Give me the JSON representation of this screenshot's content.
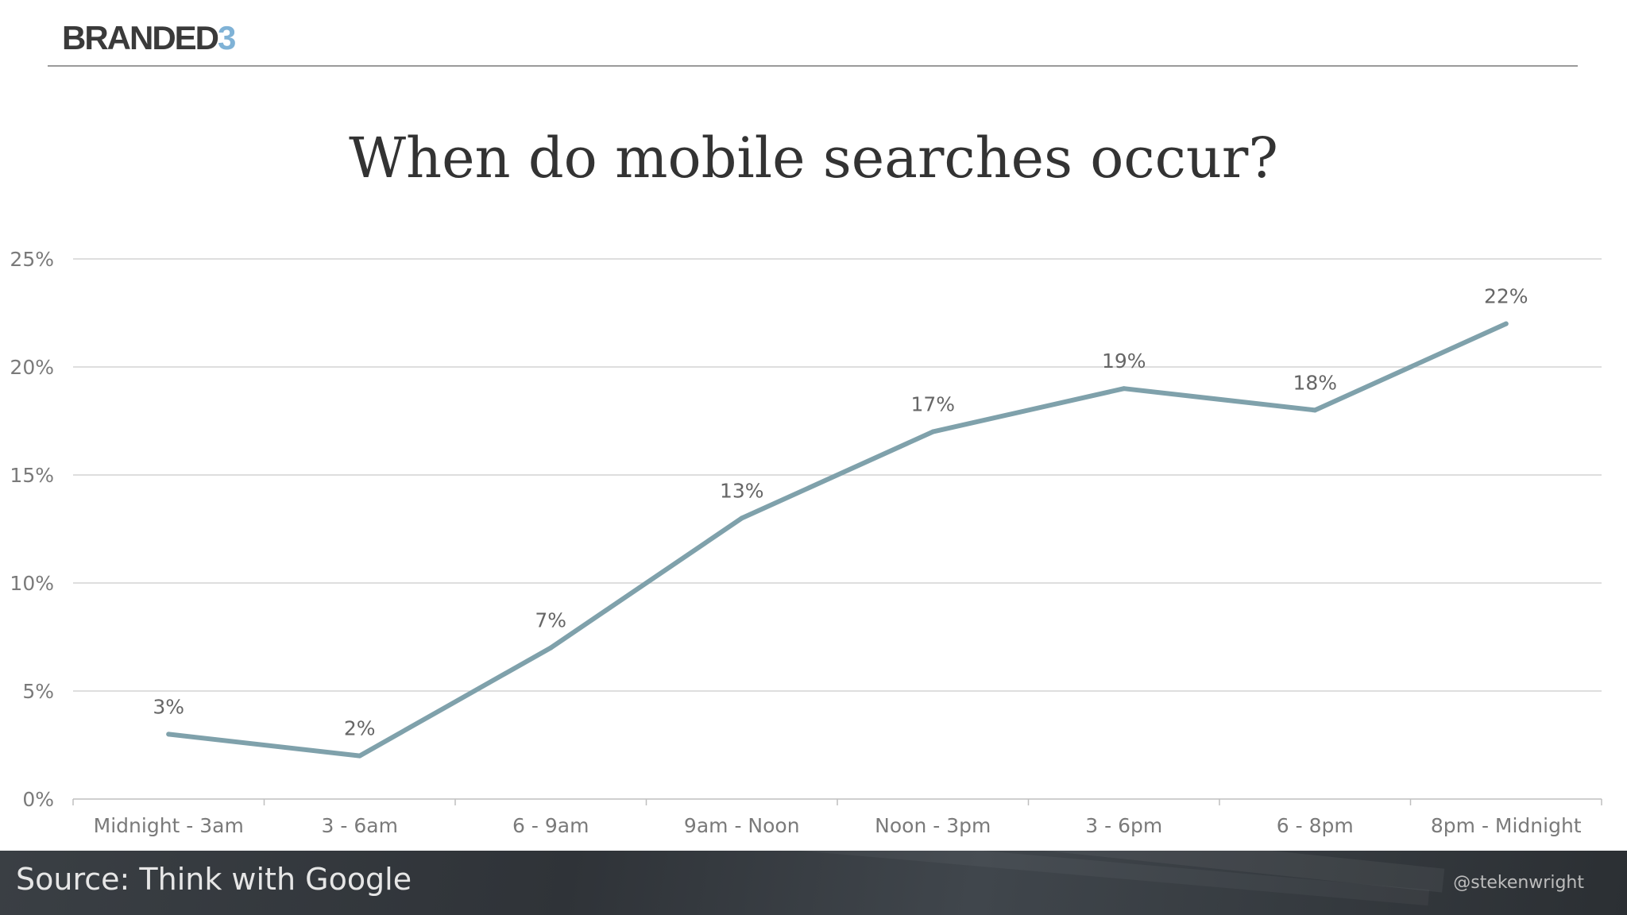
{
  "brand": {
    "name_main": "BRANDED",
    "name_accent": "3"
  },
  "colors": {
    "line": "#7fa1ab",
    "grid": "#d4d4d4",
    "accent": "#7fb2d6"
  },
  "chart_data": {
    "type": "line",
    "title": "When do mobile searches occur?",
    "categories": [
      "Midnight - 3am",
      "3 - 6am",
      "6 - 9am",
      "9am - Noon",
      "Noon - 3pm",
      "3 - 6pm",
      "6 - 8pm",
      "8pm - Midnight"
    ],
    "values": [
      3,
      2,
      7,
      13,
      17,
      19,
      18,
      22
    ],
    "data_labels": [
      "3%",
      "2%",
      "7%",
      "13%",
      "17%",
      "19%",
      "18%",
      "22%"
    ],
    "y_ticks": [
      0,
      5,
      10,
      15,
      20,
      25
    ],
    "y_tick_labels": [
      "0%",
      "5%",
      "10%",
      "15%",
      "20%",
      "25%"
    ],
    "ylim": [
      0,
      25
    ],
    "xlabel": "",
    "ylabel": "",
    "grid": true
  },
  "footer": {
    "source": "Source: Think with Google",
    "handle": "@stekenwright"
  }
}
